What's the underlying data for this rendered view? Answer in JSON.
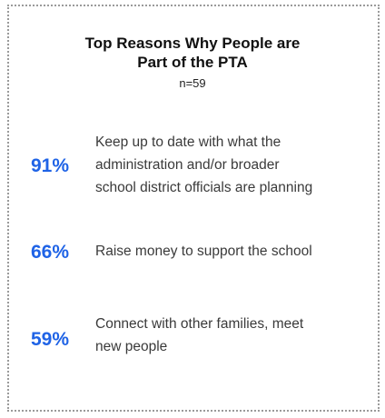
{
  "header": {
    "title_lines": [
      "Top Reasons Why People are",
      "Part of the PTA"
    ],
    "subtitle": "n=59"
  },
  "items": [
    {
      "percent": "91%",
      "label_lines": [
        "Keep up to date with what the",
        "administration and/or broader",
        "school district officials are planning"
      ]
    },
    {
      "percent": "66%",
      "label_lines": [
        "Raise money to support the school"
      ]
    },
    {
      "percent": "59%",
      "label_lines": [
        "Connect with other families, meet",
        "new people"
      ]
    }
  ]
}
